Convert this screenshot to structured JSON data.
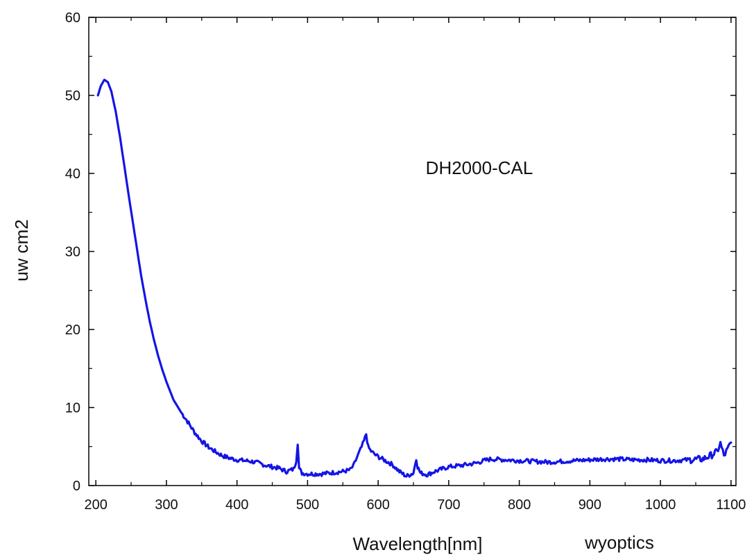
{
  "chart_data": {
    "type": "line",
    "title": "",
    "xlabel": "Wavelength[nm]",
    "ylabel": "uw cm2",
    "footer_text": "wyoptics",
    "annotation": "DH2000-CAL",
    "xlim": [
      190,
      1107
    ],
    "ylim": [
      0,
      60
    ],
    "xticks": [
      200,
      300,
      400,
      500,
      600,
      700,
      800,
      900,
      1000,
      1100
    ],
    "yticks": [
      0,
      10,
      20,
      30,
      40,
      50,
      60
    ],
    "grid": false,
    "line_color": "#1414e6",
    "series": [
      {
        "x": [
          203,
          207,
          212,
          217,
          222,
          228,
          234,
          240,
          246,
          252,
          258,
          264,
          270,
          276,
          282,
          288,
          294,
          300,
          310,
          320,
          330,
          340,
          350,
          360,
          370,
          380,
          390,
          400,
          410,
          420,
          430,
          440,
          450,
          460,
          470,
          480,
          484,
          486,
          488,
          492,
          500,
          510,
          520,
          530,
          540,
          550,
          560,
          565,
          570,
          575,
          580,
          583,
          586,
          590,
          595,
          600,
          610,
          620,
          630,
          640,
          650,
          654,
          656,
          660,
          670,
          680,
          690,
          700,
          720,
          740,
          750,
          760,
          780,
          800,
          820,
          840,
          860,
          880,
          900,
          920,
          940,
          960,
          980,
          1000,
          1020,
          1040,
          1060,
          1070,
          1080,
          1085,
          1090,
          1095,
          1100
        ],
        "y": [
          50,
          51.2,
          52,
          51.7,
          50.5,
          48,
          44.8,
          41.2,
          37.5,
          34,
          30.5,
          27,
          24,
          21.2,
          18.8,
          16.7,
          14.9,
          13.3,
          11,
          9.5,
          8.2,
          6.8,
          5.7,
          4.9,
          4.3,
          3.8,
          3.5,
          3.3,
          3.2,
          3.1,
          2.9,
          2.6,
          2.4,
          2.2,
          1.8,
          2.1,
          3.2,
          5.5,
          2.2,
          1.6,
          1.5,
          1.5,
          1.5,
          1.6,
          1.7,
          1.8,
          2,
          2.5,
          3.6,
          4.6,
          5.7,
          6.6,
          4.9,
          4.4,
          4,
          3.7,
          3.2,
          2.7,
          1.8,
          1.2,
          1.6,
          3.5,
          2.4,
          1.6,
          1.4,
          1.8,
          2.1,
          2.4,
          2.6,
          2.9,
          3.2,
          3.4,
          3.3,
          3.2,
          3.1,
          3,
          3.1,
          3.2,
          3.3,
          3.4,
          3.4,
          3.3,
          3.3,
          3.2,
          3.2,
          3.3,
          3.4,
          3.8,
          4.3,
          5.4,
          3.8,
          4.6,
          5.5
        ]
      }
    ]
  }
}
